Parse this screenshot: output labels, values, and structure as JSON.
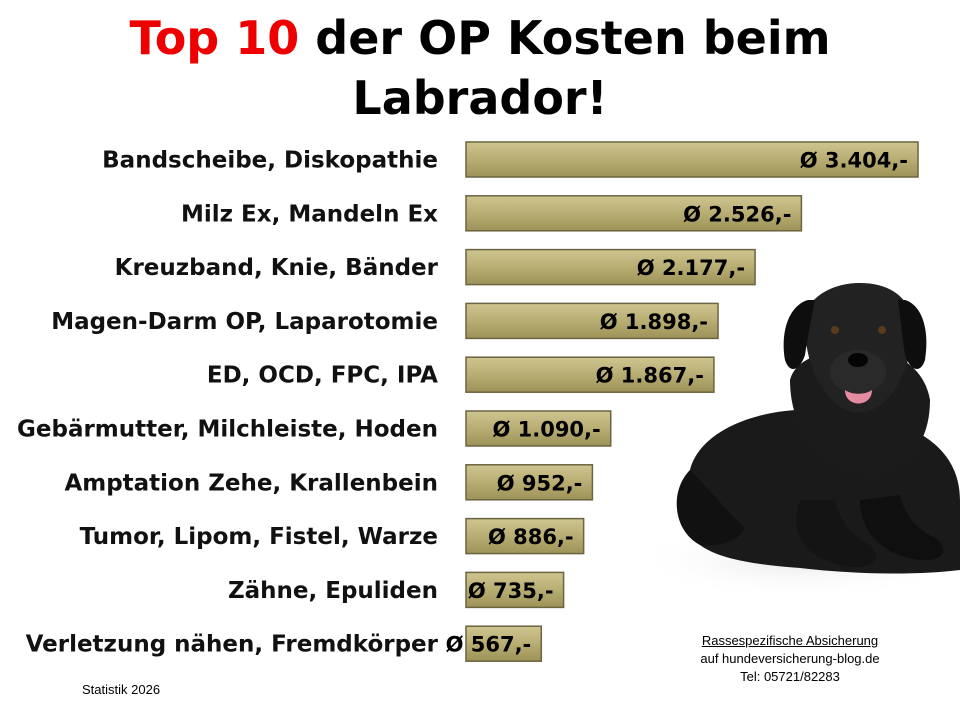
{
  "title_parts": {
    "highlight": "Top 10",
    "rest_line1": " der OP Kosten beim",
    "line2": "Labrador!"
  },
  "colors": {
    "highlight": "#ee0000",
    "bar_fill": "#b8ad73",
    "bar_edge": "#6b6440"
  },
  "chart_data": {
    "type": "bar",
    "orientation": "horizontal",
    "categories": [
      "Bandscheibe, Diskopathie",
      "Milz Ex, Mandeln Ex",
      "Kreuzband, Knie, Bänder",
      "Magen-Darm OP, Laparotomie",
      "ED, OCD, FPC, IPA",
      "Gebärmutter, Milchleiste, Hoden",
      "Amptation Zehe, Krallenbein",
      "Tumor, Lipom, Fistel, Warze",
      "Zähne, Epuliden",
      "Verletzung nähen, Fremdkörper"
    ],
    "values": [
      3404,
      2526,
      2177,
      1898,
      1867,
      1090,
      952,
      886,
      735,
      567
    ],
    "value_labels": [
      "Ø 3.404,-",
      "Ø 2.526,-",
      "Ø 2.177,-",
      "Ø 1.898,-",
      "Ø 1.867,-",
      "Ø 1.090,-",
      "Ø 952,-",
      "Ø 886,-",
      "Ø 735,-",
      "Ø 567,-"
    ],
    "grid": false,
    "legend": "none"
  },
  "image": {
    "subject": "black-labrador-icon"
  },
  "footer": {
    "statistic": "Statistik 2026",
    "link_text": "Rassespezifische  Absicherung",
    "website": "auf hundeversicherung-blog.de",
    "phone": "Tel: 05721/82283"
  }
}
